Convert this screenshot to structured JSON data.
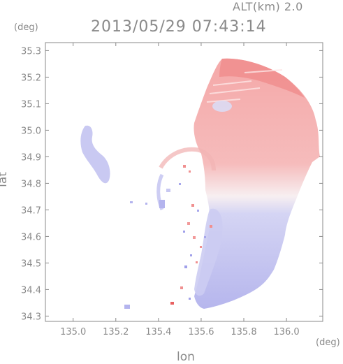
{
  "header": {
    "altitude": "ALT(km) 2.0",
    "timestamp": "2013/05/29 07:43:14"
  },
  "chart_data": {
    "type": "heatmap",
    "title": "2013/05/29 07:43:14",
    "subtitle": "ALT(km) 2.0",
    "xlabel": "lon",
    "ylabel": "lat",
    "xunit": "(deg)",
    "yunit": "(deg)",
    "xlim": [
      134.87,
      136.17
    ],
    "ylim": [
      34.28,
      35.33
    ],
    "xticks": [
      "135.0",
      "135.2",
      "135.4",
      "135.6",
      "135.8",
      "136.0"
    ],
    "yticks": [
      "34.3",
      "34.4",
      "34.5",
      "34.6",
      "34.7",
      "34.8",
      "34.9",
      "35.0",
      "35.1",
      "35.2",
      "35.3"
    ],
    "colors": {
      "positive": "#f2a6a6",
      "negative": "#b4b4ee",
      "neutral": "#f4eef2",
      "axis": "#8a8a8a"
    }
  }
}
